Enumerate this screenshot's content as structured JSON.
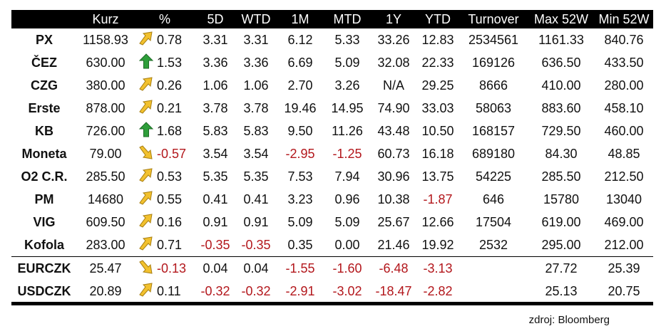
{
  "columns": [
    "",
    "Kurz",
    "%",
    "5D",
    "WTD",
    "1M",
    "MTD",
    "1Y",
    "YTD",
    "Turnover",
    "Max 52W",
    "Min 52W"
  ],
  "stocks": [
    {
      "name": "PX",
      "kurz": "1158.93",
      "trend": "up-flat",
      "pct": "0.78",
      "d5": "3.31",
      "wtd": "3.31",
      "m1": "6.12",
      "mtd": "5.33",
      "y1": "33.26",
      "ytd": "12.83",
      "turnover": "2534561",
      "max52": "1161.33",
      "min52": "840.76"
    },
    {
      "name": "ČEZ",
      "kurz": "630.00",
      "trend": "up-strong",
      "pct": "1.53",
      "d5": "3.36",
      "wtd": "3.36",
      "m1": "6.69",
      "mtd": "5.09",
      "y1": "32.08",
      "ytd": "22.33",
      "turnover": "169126",
      "max52": "636.50",
      "min52": "433.50"
    },
    {
      "name": "CZG",
      "kurz": "380.00",
      "trend": "up-flat",
      "pct": "0.26",
      "d5": "1.06",
      "wtd": "1.06",
      "m1": "2.70",
      "mtd": "3.26",
      "y1": "N/A",
      "ytd": "29.25",
      "turnover": "8666",
      "max52": "410.00",
      "min52": "280.00"
    },
    {
      "name": "Erste",
      "kurz": "878.00",
      "trend": "up-flat",
      "pct": "0.21",
      "d5": "3.78",
      "wtd": "3.78",
      "m1": "19.46",
      "mtd": "14.95",
      "y1": "74.90",
      "ytd": "33.03",
      "turnover": "58063",
      "max52": "883.60",
      "min52": "458.10"
    },
    {
      "name": "KB",
      "kurz": "726.00",
      "trend": "up-strong",
      "pct": "1.68",
      "d5": "5.83",
      "wtd": "5.83",
      "m1": "9.50",
      "mtd": "11.26",
      "y1": "43.48",
      "ytd": "10.50",
      "turnover": "168157",
      "max52": "729.50",
      "min52": "460.00"
    },
    {
      "name": "Moneta",
      "kurz": "79.00",
      "trend": "down-flat",
      "pct": "-0.57",
      "d5": "3.54",
      "wtd": "3.54",
      "m1": "-2.95",
      "mtd": "-1.25",
      "y1": "60.73",
      "ytd": "16.18",
      "turnover": "689180",
      "max52": "84.30",
      "min52": "48.85"
    },
    {
      "name": "O2 C.R.",
      "kurz": "285.50",
      "trend": "up-flat",
      "pct": "0.53",
      "d5": "5.35",
      "wtd": "5.35",
      "m1": "7.53",
      "mtd": "7.94",
      "y1": "30.96",
      "ytd": "13.75",
      "turnover": "54225",
      "max52": "285.50",
      "min52": "212.50"
    },
    {
      "name": "PM",
      "kurz": "14680",
      "trend": "up-flat",
      "pct": "0.55",
      "d5": "0.41",
      "wtd": "0.41",
      "m1": "3.23",
      "mtd": "0.96",
      "y1": "10.38",
      "ytd": "-1.87",
      "turnover": "646",
      "max52": "15780",
      "min52": "13040"
    },
    {
      "name": "VIG",
      "kurz": "609.50",
      "trend": "up-flat",
      "pct": "0.16",
      "d5": "0.91",
      "wtd": "0.91",
      "m1": "5.09",
      "mtd": "5.09",
      "y1": "25.67",
      "ytd": "12.66",
      "turnover": "17504",
      "max52": "619.00",
      "min52": "469.00"
    },
    {
      "name": "Kofola",
      "kurz": "283.00",
      "trend": "up-flat",
      "pct": "0.71",
      "d5": "-0.35",
      "wtd": "-0.35",
      "m1": "0.35",
      "mtd": "0.00",
      "y1": "21.46",
      "ytd": "19.92",
      "turnover": "2532",
      "max52": "295.00",
      "min52": "212.00"
    }
  ],
  "currencies": [
    {
      "name": "EURCZK",
      "kurz": "25.47",
      "trend": "down-flat",
      "pct": "-0.13",
      "d5": "0.04",
      "wtd": "0.04",
      "m1": "-1.55",
      "mtd": "-1.60",
      "y1": "-6.48",
      "ytd": "-3.13",
      "turnover": "",
      "max52": "27.72",
      "min52": "25.39"
    },
    {
      "name": "USDCZK",
      "kurz": "20.89",
      "trend": "up-flat",
      "pct": "0.11",
      "d5": "-0.32",
      "wtd": "-0.32",
      "m1": "-2.91",
      "mtd": "-3.02",
      "y1": "-18.47",
      "ytd": "-2.82",
      "turnover": "",
      "max52": "25.13",
      "min52": "20.75"
    }
  ],
  "source": "zdroj: Bloomberg",
  "colors": {
    "negative": "#b3171c",
    "arrow_yellow": "#f2c12e",
    "arrow_green": "#2e9e3a",
    "header_bg": "#000000"
  },
  "icons": {
    "up-flat": "arrow-up-right-icon",
    "down-flat": "arrow-down-right-icon",
    "up-strong": "arrow-up-icon"
  }
}
